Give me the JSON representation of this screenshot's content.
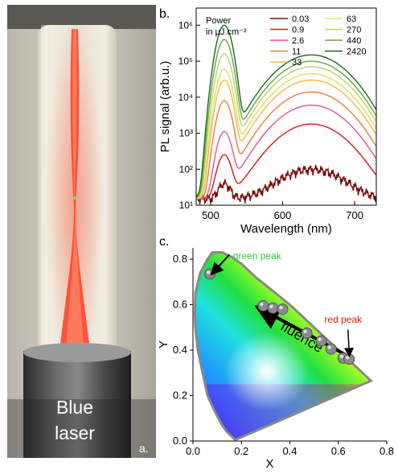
{
  "panel_a": {
    "caption_line1": "Blue",
    "caption_line2": "laser",
    "panel_label": "a."
  },
  "chart_data": [
    {
      "panel_label": "b.",
      "type": "line",
      "xlabel": "Wavelength (nm)",
      "ylabel": "PL signal (arb.u.)",
      "xlim": [
        480,
        730
      ],
      "ylim": [
        10,
        3000000
      ],
      "yscale": "log",
      "x_ticks": [
        500,
        600,
        700
      ],
      "y_ticks": [
        {
          "value": 10,
          "label": "10¹"
        },
        {
          "value": 100,
          "label": "10²"
        },
        {
          "value": 1000,
          "label": "10³"
        },
        {
          "value": 10000,
          "label": "10⁴"
        },
        {
          "value": 100000,
          "label": "10⁵"
        },
        {
          "value": 1000000,
          "label": "10⁶"
        }
      ],
      "legend_title_line1": "Power",
      "legend_title_line2": "in µJ.cm⁻²",
      "legend_placement": "top",
      "series": [
        {
          "name": "0.03",
          "color": "#7b0d0d",
          "green_peak": 40,
          "red_peak": 100
        },
        {
          "name": "0.9",
          "color": "#d8161f",
          "green_peak": 250,
          "red_peak": 1800
        },
        {
          "name": "2.6",
          "color": "#e4548f",
          "green_peak": 1100,
          "red_peak": 6000
        },
        {
          "name": "11",
          "color": "#f07b38",
          "green_peak": 8000,
          "red_peak": 14000
        },
        {
          "name": "33",
          "color": "#f3b84a",
          "green_peak": 30000,
          "red_peak": 30000
        },
        {
          "name": "63",
          "color": "#e5df5a",
          "green_peak": 60000,
          "red_peak": 45000
        },
        {
          "name": "270",
          "color": "#b8d46a",
          "green_peak": 160000,
          "red_peak": 70000
        },
        {
          "name": "440",
          "color": "#6ca33c",
          "green_peak": 400000,
          "red_peak": 100000
        },
        {
          "name": "2420",
          "color": "#1a6a1a",
          "green_peak": 1000000,
          "red_peak": 150000
        }
      ]
    },
    {
      "panel_label": "c.",
      "type": "scatter",
      "xlabel": "X",
      "ylabel": "Y",
      "xlim": [
        0,
        0.8
      ],
      "ylim": [
        0,
        0.85
      ],
      "x_ticks": [
        0.0,
        0.2,
        0.4,
        0.6,
        0.8
      ],
      "x_tick_labels": [
        "0.0",
        "0.2",
        "0.4",
        "0.6",
        "0.8"
      ],
      "y_ticks": [
        0.0,
        0.2,
        0.4,
        0.6,
        0.8
      ],
      "y_tick_labels": [
        "0.0",
        "0.2",
        "0.4",
        "0.6",
        "0.8"
      ],
      "points": [
        {
          "x": 0.07,
          "y": 0.735
        },
        {
          "x": 0.29,
          "y": 0.595
        },
        {
          "x": 0.33,
          "y": 0.585
        },
        {
          "x": 0.37,
          "y": 0.58
        },
        {
          "x": 0.47,
          "y": 0.475
        },
        {
          "x": 0.53,
          "y": 0.44
        },
        {
          "x": 0.57,
          "y": 0.405
        },
        {
          "x": 0.62,
          "y": 0.365
        },
        {
          "x": 0.645,
          "y": 0.36
        }
      ],
      "annotations": {
        "green_label": "green peak",
        "red_label": "red peak",
        "fluence_label": "fluence"
      },
      "colors": {
        "green_label": "#2ecc40",
        "red_label": "#e01818",
        "locus_outline": "#888888"
      }
    }
  ]
}
